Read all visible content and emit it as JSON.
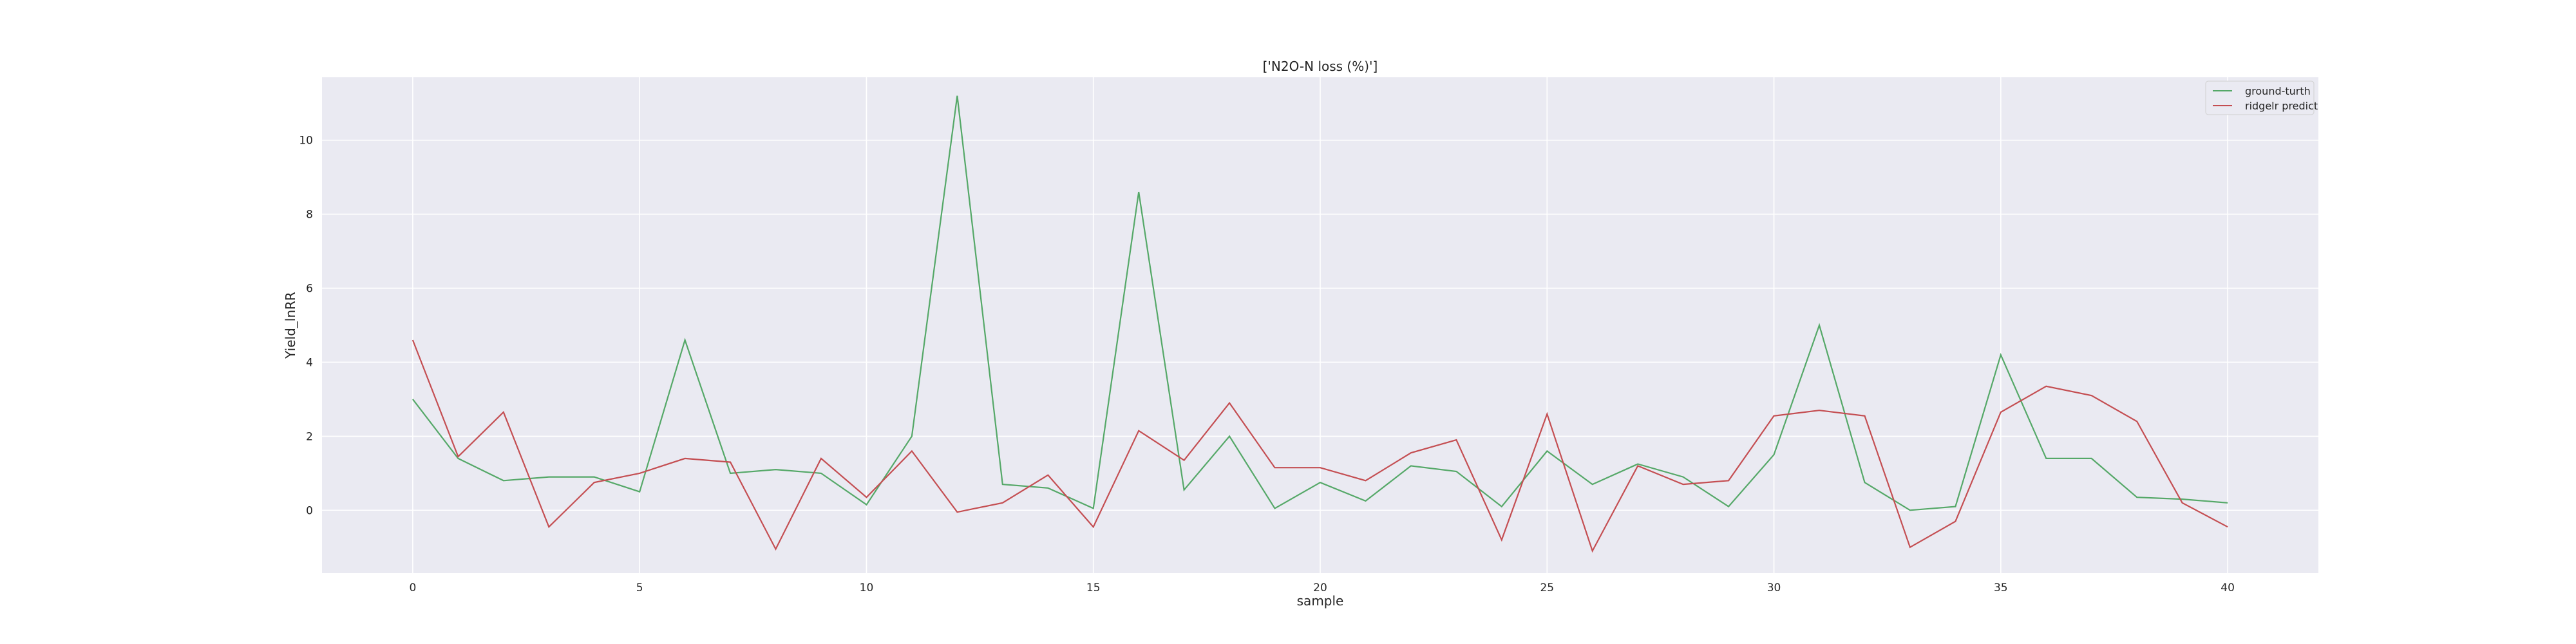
{
  "chart_data": {
    "type": "line",
    "title": "['N2O-N loss (%)']",
    "xlabel": "sample",
    "ylabel": "Yield_lnRR",
    "xlim": [
      -2,
      42
    ],
    "ylim": [
      -1.7,
      11.7
    ],
    "xticks": [
      0,
      5,
      10,
      15,
      20,
      25,
      30,
      35,
      40
    ],
    "yticks": [
      0,
      2,
      4,
      6,
      8,
      10
    ],
    "grid": true,
    "legend_position": "top-right",
    "x": [
      0,
      1,
      2,
      3,
      4,
      5,
      6,
      7,
      8,
      9,
      10,
      11,
      12,
      13,
      14,
      15,
      16,
      17,
      18,
      19,
      20,
      21,
      22,
      23,
      24,
      25,
      26,
      27,
      28,
      29,
      30,
      31,
      32,
      33,
      34,
      35,
      36,
      37,
      38,
      39,
      40
    ],
    "series": [
      {
        "name": "ground-turth",
        "color": "#55a868",
        "values": [
          3.0,
          1.4,
          0.8,
          0.9,
          0.9,
          0.5,
          4.6,
          1.0,
          1.1,
          1.0,
          0.15,
          2.0,
          11.2,
          0.7,
          0.6,
          0.05,
          8.6,
          0.55,
          2.0,
          0.05,
          0.75,
          0.25,
          1.2,
          1.05,
          0.1,
          1.6,
          0.7,
          1.25,
          0.9,
          0.1,
          1.5,
          5.0,
          0.75,
          0.0,
          0.1,
          4.2,
          1.4,
          1.4,
          0.35,
          0.3,
          0.2
        ]
      },
      {
        "name": "ridgelr predict",
        "color": "#c44e52",
        "values": [
          4.6,
          1.45,
          2.65,
          -0.45,
          0.75,
          1.0,
          1.4,
          1.3,
          -1.05,
          1.4,
          0.35,
          1.6,
          -0.05,
          0.2,
          0.95,
          -0.45,
          2.15,
          1.35,
          2.9,
          1.15,
          1.15,
          0.8,
          1.55,
          1.9,
          -0.8,
          2.6,
          -1.1,
          1.2,
          0.7,
          0.8,
          2.55,
          2.7,
          2.55,
          -1.0,
          -0.3,
          2.65,
          3.35,
          3.1,
          2.4,
          0.2,
          -0.45
        ]
      }
    ]
  }
}
